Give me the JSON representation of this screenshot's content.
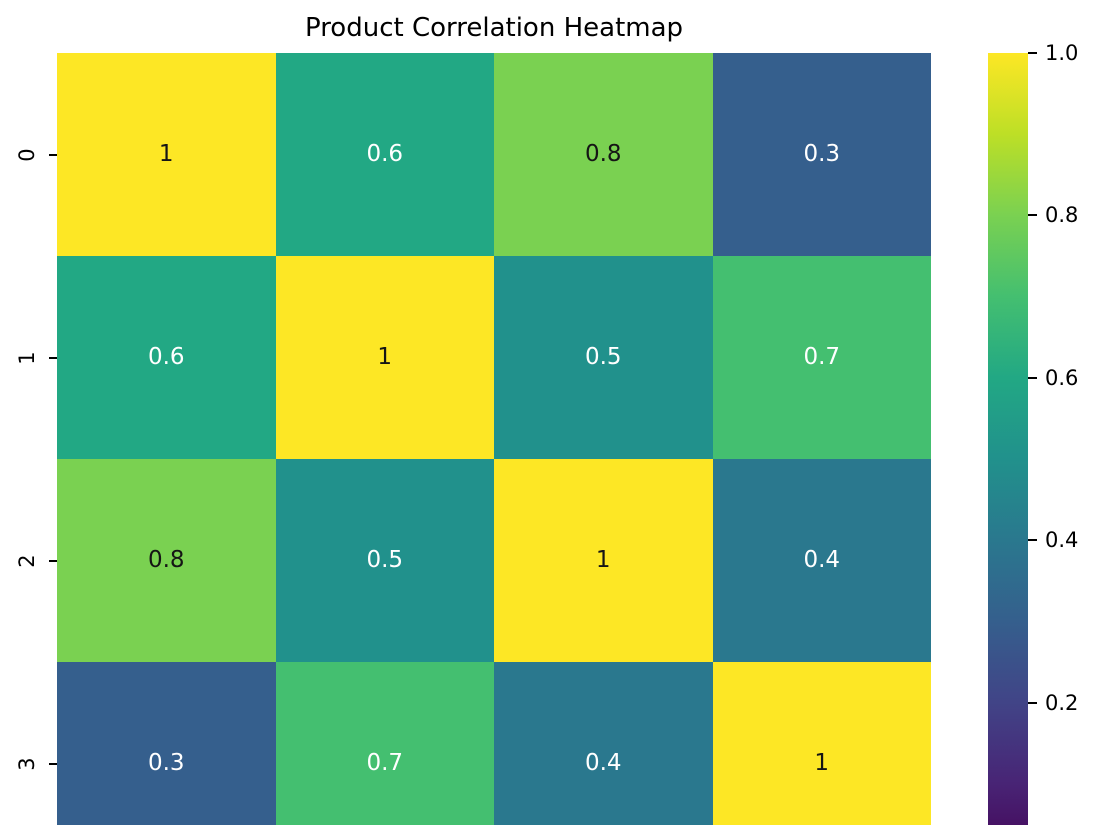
{
  "title": "Product Correlation Heatmap",
  "chart_data": {
    "type": "heatmap",
    "title": "Product Correlation Heatmap",
    "row_labels": [
      "0",
      "1",
      "2",
      "3"
    ],
    "matrix": [
      [
        1,
        0.6,
        0.8,
        0.3
      ],
      [
        0.6,
        1,
        0.5,
        0.7
      ],
      [
        0.8,
        0.5,
        1,
        0.4
      ],
      [
        0.3,
        0.7,
        0.4,
        1
      ]
    ],
    "colormap": "viridis",
    "vmin": 0,
    "vmax": 1,
    "annotations_on": true,
    "grid": false,
    "colorbar_position": "right",
    "colorbar_ticks": [
      {
        "value": 1.0,
        "label": "1.0"
      },
      {
        "value": 0.8,
        "label": "0.8"
      },
      {
        "value": 0.6,
        "label": "0.6"
      },
      {
        "value": 0.4,
        "label": "0.4"
      },
      {
        "value": 0.2,
        "label": "0.2"
      }
    ],
    "value_colors": {
      "1": "#fde725",
      "0.8": "#7ad151",
      "0.7": "#44bf70",
      "0.6": "#22a884",
      "0.5": "#21918c",
      "0.4": "#2a788e",
      "0.3": "#355f8d"
    },
    "annotation_dark_text": "#151515",
    "annotation_light_text": "#ffffff",
    "annotation_black_threshold": 0.8,
    "viridis_stops": [
      {
        "v": 1.0,
        "color": "#fde725"
      },
      {
        "v": 0.9,
        "color": "#bddf26"
      },
      {
        "v": 0.8,
        "color": "#7ad151"
      },
      {
        "v": 0.7,
        "color": "#44bf70"
      },
      {
        "v": 0.6,
        "color": "#22a884"
      },
      {
        "v": 0.5,
        "color": "#21918c"
      },
      {
        "v": 0.4,
        "color": "#2a788e"
      },
      {
        "v": 0.3,
        "color": "#355f8d"
      },
      {
        "v": 0.2,
        "color": "#414487"
      },
      {
        "v": 0.1,
        "color": "#482475"
      },
      {
        "v": 0.0,
        "color": "#440154"
      }
    ]
  }
}
